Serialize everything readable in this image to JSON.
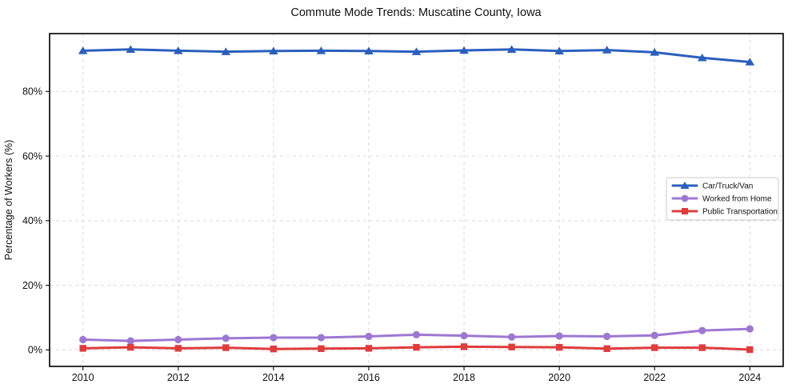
{
  "chart_data": {
    "type": "line",
    "title": "Commute Mode Trends: Muscatine County, Iowa",
    "xlabel": "",
    "ylabel": "Percentage of Workers (%)",
    "x": [
      2010,
      2011,
      2012,
      2013,
      2014,
      2015,
      2016,
      2017,
      2018,
      2019,
      2020,
      2021,
      2022,
      2023,
      2024
    ],
    "series": [
      {
        "name": "Car/Truck/Van",
        "color": "#2b5fbe",
        "marker": "triangle",
        "values": [
          92.6,
          93.0,
          92.6,
          92.3,
          92.5,
          92.6,
          92.5,
          92.3,
          92.7,
          93.0,
          92.5,
          92.8,
          92.1,
          90.4,
          89.1
        ]
      },
      {
        "name": "Worked from Home",
        "color": "#9d78d2",
        "marker": "circle",
        "values": [
          3.2,
          2.8,
          3.2,
          3.6,
          3.8,
          3.8,
          4.2,
          4.7,
          4.4,
          4.0,
          4.3,
          4.2,
          4.5,
          6.0,
          6.5
        ]
      },
      {
        "name": "Public Transportation",
        "color": "#e03c3c",
        "marker": "square",
        "values": [
          0.5,
          0.8,
          0.5,
          0.7,
          0.3,
          0.4,
          0.5,
          0.8,
          1.0,
          0.9,
          0.8,
          0.4,
          0.7,
          0.7,
          0.1
        ]
      }
    ],
    "xticks": [
      2010,
      2012,
      2014,
      2016,
      2018,
      2020,
      2022,
      2024
    ],
    "yticks": [
      0,
      20,
      40,
      60,
      80
    ],
    "ytick_labels": [
      "0%",
      "20%",
      "40%",
      "60%",
      "80%"
    ],
    "xlim": [
      2009.3,
      2024.7
    ],
    "ylim": [
      -5.1,
      97.9
    ],
    "grid": true,
    "grid_color": "#d9d9d9",
    "axis_color": "#1a1a1a",
    "legend_position": "center right"
  }
}
